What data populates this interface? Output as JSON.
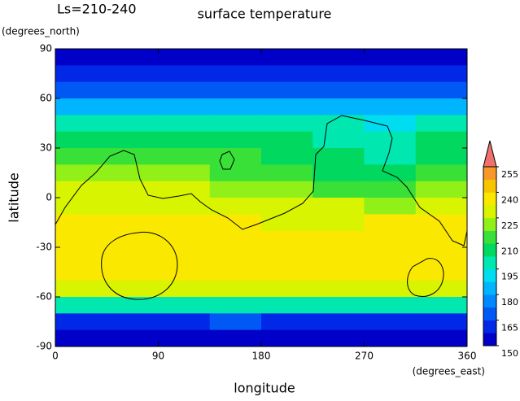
{
  "chart_data": {
    "type": "contour",
    "subtitle": "Ls=210-240",
    "title": "surface temperature",
    "x_label": "longitude",
    "x_unit": "(degrees_east)",
    "y_label": "latitude",
    "y_unit": "(degrees_north)",
    "xlim": [
      0,
      360
    ],
    "ylim": [
      -90,
      90
    ],
    "xticks": [
      0,
      90,
      180,
      270,
      360
    ],
    "yticks": [
      -90,
      -60,
      -30,
      0,
      30,
      60,
      90
    ],
    "x": [
      22.5,
      67.5,
      112.5,
      157.5,
      202.5,
      247.5,
      292.5,
      337.5
    ],
    "y": [
      85,
      75,
      65,
      55,
      45,
      35,
      25,
      15,
      5,
      -5,
      -15,
      -25,
      -35,
      -45,
      -55,
      -65,
      -75,
      -85
    ],
    "z": [
      [
        152,
        151,
        151,
        152,
        152,
        151,
        152,
        153
      ],
      [
        160,
        159,
        160,
        160,
        160,
        159,
        160,
        161
      ],
      [
        171,
        172,
        172,
        171,
        172,
        171,
        171,
        172
      ],
      [
        184,
        185,
        185,
        184,
        185,
        184,
        183,
        184
      ],
      [
        197,
        198,
        198,
        197,
        197,
        196,
        194,
        196
      ],
      [
        205,
        206,
        206,
        205,
        204,
        200,
        198,
        203
      ],
      [
        211,
        212,
        212,
        210,
        209,
        203,
        202,
        208
      ],
      [
        219,
        220,
        219,
        217,
        215,
        208,
        207,
        214
      ],
      [
        225,
        226,
        225,
        223,
        222,
        216,
        214,
        221
      ],
      [
        229,
        230,
        230,
        228,
        228,
        226,
        224,
        228
      ],
      [
        233,
        234,
        234,
        233,
        232,
        231,
        233,
        234
      ],
      [
        236,
        237,
        238,
        238,
        236,
        234,
        238,
        238
      ],
      [
        237,
        236,
        238,
        238,
        236,
        235,
        236,
        239
      ],
      [
        234,
        233,
        235,
        234,
        233,
        233,
        233,
        234
      ],
      [
        227,
        228,
        228,
        227,
        227,
        228,
        228,
        229
      ],
      [
        200,
        199,
        200,
        202,
        201,
        200,
        201,
        200
      ],
      [
        164,
        163,
        164,
        165,
        164,
        163,
        164,
        164
      ],
      [
        151,
        151,
        150,
        151,
        151,
        150,
        151,
        151
      ]
    ],
    "colorbar": {
      "bounds": [
        150,
        157.5,
        165,
        172.5,
        180,
        187.5,
        195,
        202.5,
        210,
        217.5,
        225,
        232.5,
        240,
        247.5,
        255
      ],
      "colors": [
        "#0000c8",
        "#0028e6",
        "#0058f5",
        "#0088ff",
        "#00b4ff",
        "#00dcf0",
        "#00e8b0",
        "#00d860",
        "#38e038",
        "#90f018",
        "#d8f400",
        "#fae800",
        "#f8c400",
        "#f89828"
      ],
      "extend_color": "#f07070",
      "ticks": [
        150,
        165,
        180,
        195,
        210,
        225,
        240,
        255
      ]
    }
  }
}
